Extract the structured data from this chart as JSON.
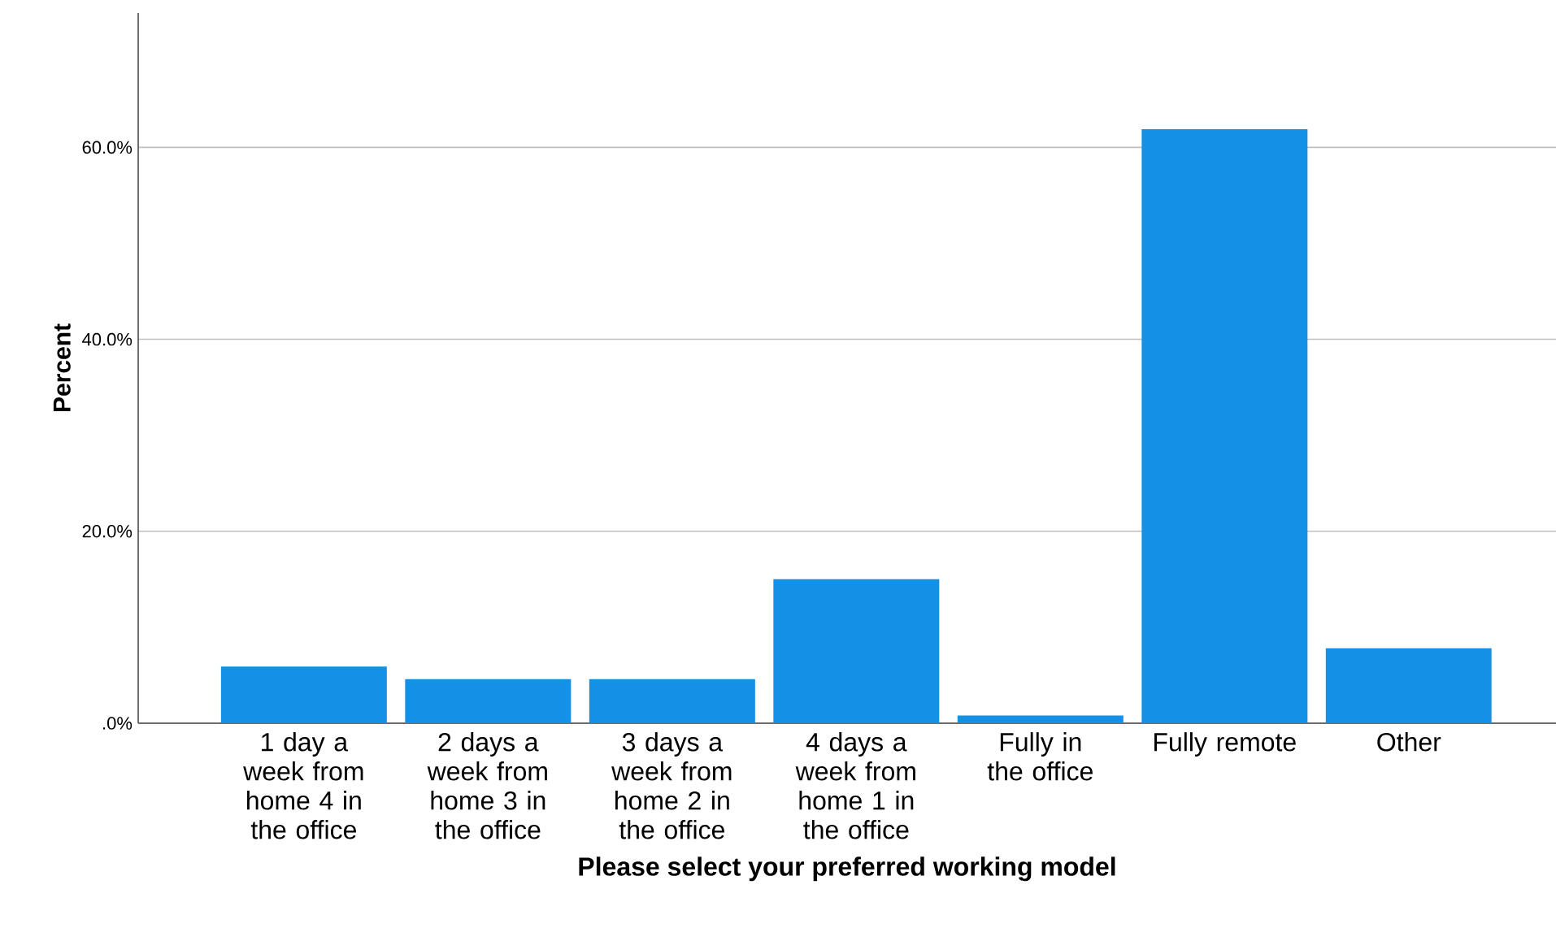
{
  "chart_data": {
    "type": "bar",
    "categories": [
      "1 day a week from home 4 in the office",
      "2 days a week from home 3 in the office",
      "3 days a week from home 2 in the office",
      "4 days a week from home 1 in the office",
      "Fully in the office",
      "Fully remote",
      "Other"
    ],
    "values": [
      5.9,
      4.6,
      4.6,
      15.0,
      0.8,
      61.9,
      7.8
    ],
    "color": "#1490e6",
    "xlabel": "Please select your preferred working model",
    "ylabel": "Percent",
    "ylim": [
      0,
      74
    ],
    "yticks": [
      {
        "value": 0,
        "label": ".0%"
      },
      {
        "value": 20,
        "label": "20.0%"
      },
      {
        "value": 40,
        "label": "40.0%"
      },
      {
        "value": 60,
        "label": "60.0%"
      }
    ],
    "grid": "y"
  }
}
